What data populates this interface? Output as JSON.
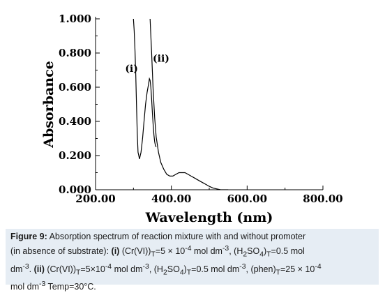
{
  "chart_data": {
    "type": "line",
    "xlabel": "Wavelength (nm)",
    "ylabel": "Absorbance",
    "xlim": [
      200,
      800
    ],
    "ylim": [
      0,
      1
    ],
    "x_ticks": [
      "200.00",
      "400.00",
      "600.00",
      "800.00"
    ],
    "y_ticks": [
      "0.000",
      "0.200",
      "0.400",
      "0.600",
      "0.800",
      "1.000"
    ],
    "series": [
      {
        "name": "(i)",
        "x": [
          300,
          302,
          304,
          306,
          308,
          310,
          312,
          316,
          320,
          324,
          328,
          332,
          336,
          340,
          342,
          344,
          346,
          348,
          350,
          352,
          354,
          356,
          358,
          360
        ],
        "y": [
          1.0,
          0.93,
          0.82,
          0.68,
          0.5,
          0.33,
          0.22,
          0.18,
          0.22,
          0.3,
          0.4,
          0.5,
          0.57,
          0.62,
          0.65,
          0.64,
          0.6,
          0.53,
          0.45,
          0.38,
          0.32,
          0.28,
          0.26,
          0.25
        ]
      },
      {
        "name": "(ii)",
        "x": [
          344,
          348,
          352,
          356,
          360,
          366,
          372,
          380,
          388,
          396,
          404,
          412,
          420,
          428,
          436,
          444,
          452,
          460,
          468,
          476,
          484,
          492,
          500,
          510,
          520,
          530,
          540,
          550
        ],
        "y": [
          1.0,
          0.8,
          0.58,
          0.42,
          0.31,
          0.22,
          0.16,
          0.12,
          0.09,
          0.08,
          0.08,
          0.09,
          0.1,
          0.1,
          0.1,
          0.09,
          0.08,
          0.07,
          0.06,
          0.05,
          0.04,
          0.03,
          0.02,
          0.01,
          0.005,
          0.0,
          0.0,
          0.0
        ]
      }
    ],
    "grid": false,
    "legend": "none"
  },
  "caption": {
    "figure_label": "Figure 9:",
    "line1_text": " Absorption spectrum of reaction mixture with and without promoter",
    "line2_text": "(in absence of substrate): ",
    "line2_tag": "(i)",
    "line2_rest": " (Cr(VI))",
    "sub_T": "T",
    "eq_5": "=5 × 10",
    "exp_m4": "-4",
    "unit": " mol dm",
    "exp_m3": "-3",
    "h2so4_open": ", (H",
    "sub_2": "2",
    "so": "SO",
    "sub_4": "4",
    "close": ")",
    "eq_05": "=0.5 mol",
    "line3_start": "dm",
    "period": ". ",
    "tag_ii": "(ii)",
    "cr_open": " (Cr(VI))",
    "eq_5b": "=5×10",
    "unit2": " mol dm",
    "h2so4_b": ", (H",
    "eq_05b": "=0.5 mol dm",
    "phen": ", (phen)",
    "eq_25": "=25 × 10",
    "line4_start": "mol dm",
    "temp": " Temp=30°C."
  }
}
